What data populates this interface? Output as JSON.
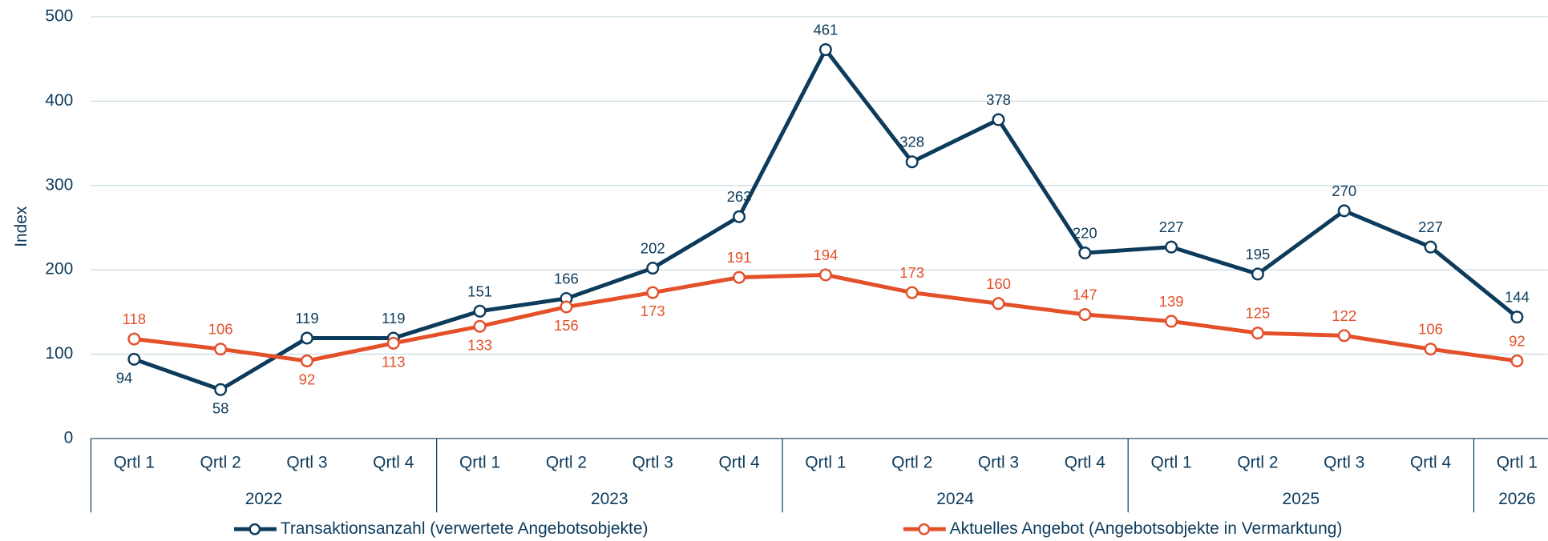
{
  "chart_data": {
    "type": "line",
    "y_label": "Index",
    "category_groups": [
      {
        "label": "2022",
        "categories": [
          "Qrtl 1",
          "Qrtl 2",
          "Qrtl 3",
          "Qrtl 4"
        ]
      },
      {
        "label": "2023",
        "categories": [
          "Qrtl 1",
          "Qrtl 2",
          "Qrtl 3",
          "Qrtl 4"
        ]
      },
      {
        "label": "2024",
        "categories": [
          "Qrtl 1",
          "Qrtl 2",
          "Qrtl 3",
          "Qrtl 4"
        ]
      },
      {
        "label": "2025",
        "categories": [
          "Qrtl 1",
          "Qrtl 2",
          "Qrtl 3",
          "Qrtl 4"
        ]
      },
      {
        "label": "2026",
        "categories": [
          "Qrtl 1"
        ]
      }
    ],
    "series": [
      {
        "name": "Transaktionsanzahl (verwertete Angebotsobjekte)",
        "color": "#0d3b5c",
        "values": [
          94,
          58,
          119,
          119,
          151,
          166,
          202,
          263,
          461,
          328,
          378,
          220,
          227,
          195,
          270,
          227,
          144
        ]
      },
      {
        "name": "Aktuelles Angebot (Angebotsobjekte in Vermarktung)",
        "color": "#e4502a",
        "values": [
          118,
          106,
          92,
          113,
          133,
          156,
          173,
          191,
          194,
          173,
          160,
          147,
          139,
          125,
          122,
          106,
          92
        ]
      }
    ],
    "ylim": [
      0,
      500
    ],
    "yticks": [
      0,
      100,
      200,
      300,
      400,
      500
    ],
    "grid": true
  }
}
